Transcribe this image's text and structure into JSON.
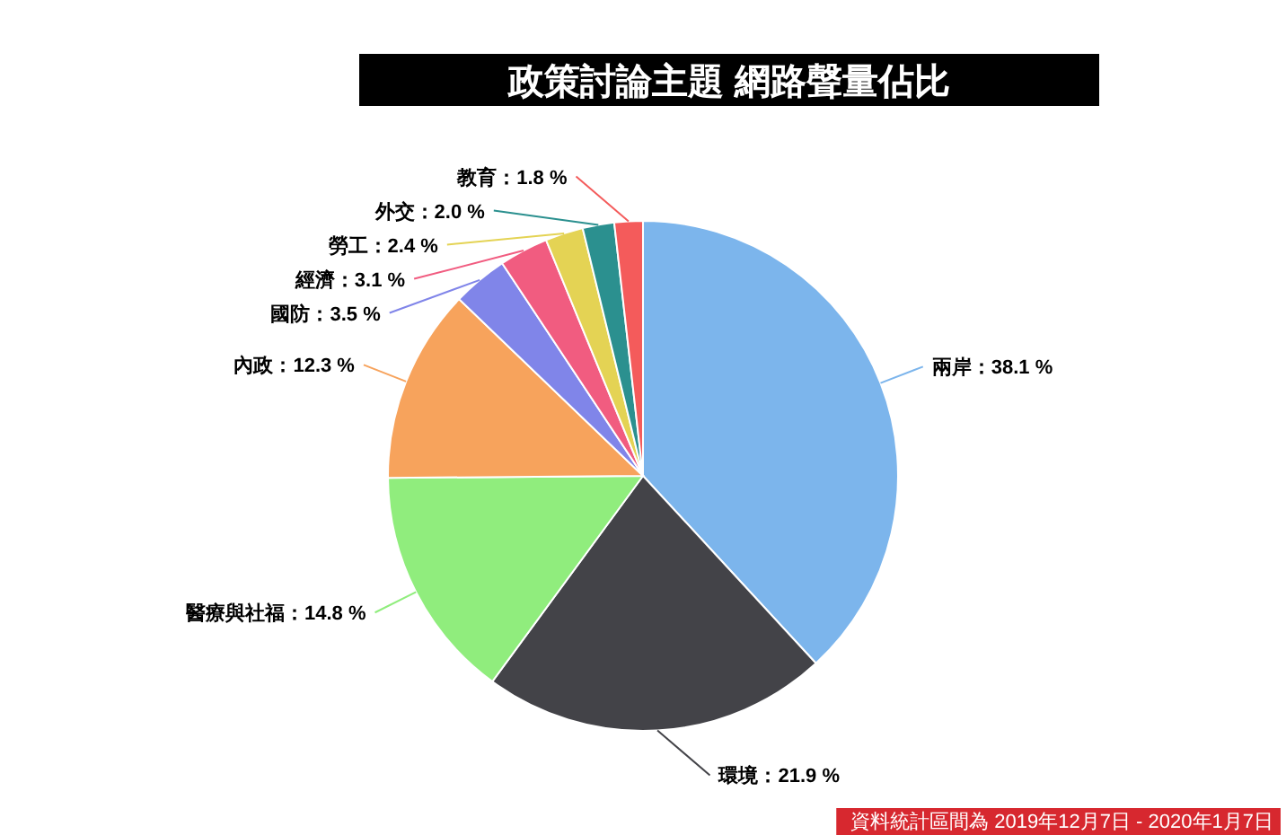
{
  "chart_data": {
    "type": "pie",
    "title": "政策討論主題 網路聲量佔比",
    "categories": [
      "兩岸",
      "環境",
      "醫療與社福",
      "內政",
      "國防",
      "經濟",
      "勞工",
      "外交",
      "教育"
    ],
    "values": [
      38.1,
      21.9,
      14.8,
      12.3,
      3.5,
      3.1,
      2.4,
      2.0,
      1.8
    ],
    "colors": [
      "#7cb5ec",
      "#434348",
      "#90ed7d",
      "#f7a35c",
      "#8085e9",
      "#f15c80",
      "#e4d354",
      "#2b908f",
      "#f45b5b"
    ],
    "value_labels": [
      "38.1 %",
      "21.9 %",
      "14.8 %",
      "12.3 %",
      "3.5 %",
      "3.1 %",
      "2.4 %",
      "2.0 %",
      "1.8 %"
    ],
    "annotations": [
      "資料統計區間為 2019年12月7日 - 2020年1月7日"
    ]
  }
}
